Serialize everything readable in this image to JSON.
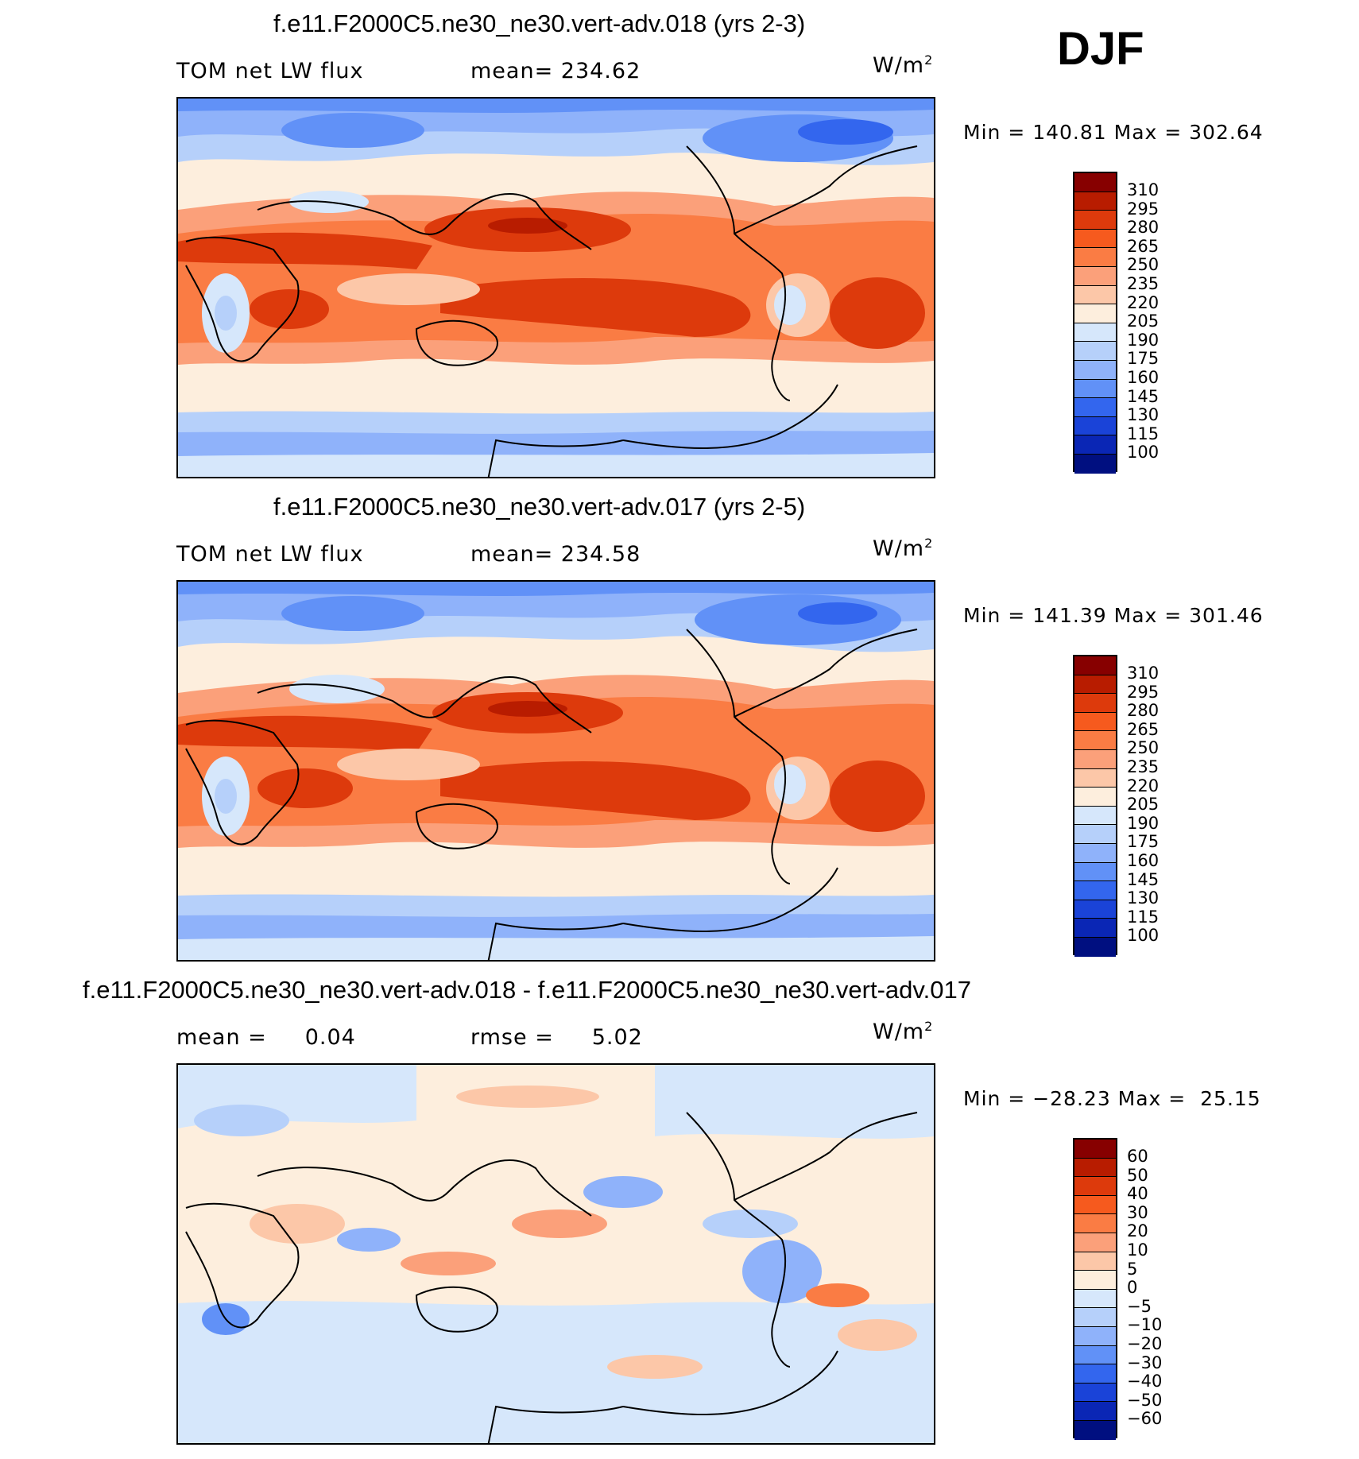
{
  "season": "DJF",
  "units_prefix": "W/m",
  "units_sup": "2",
  "panels": [
    {
      "title": "f.e11.F2000C5.ne30_ne30.vert-adv.018 (yrs 2-3)",
      "left_label": "TOM net LW flux",
      "right_label": "mean= 234.62",
      "minmax": "Min = 140.81 Max = 302.64",
      "scale": "abs"
    },
    {
      "title": "f.e11.F2000C5.ne30_ne30.vert-adv.017 (yrs 2-5)",
      "left_label": "TOM net LW flux",
      "right_label": "mean= 234.58",
      "minmax": "Min = 141.39 Max = 301.46",
      "scale": "abs"
    },
    {
      "title": "f.e11.F2000C5.ne30_ne30.vert-adv.018 - f.e11.F2000C5.ne30_ne30.vert-adv.017",
      "left_label": "mean =     0.04",
      "right_label": "rmse =     5.02",
      "minmax": "Min = −28.23 Max =  25.15",
      "scale": "diff"
    }
  ],
  "abs_levels": [
    "310",
    "295",
    "280",
    "265",
    "250",
    "235",
    "220",
    "205",
    "190",
    "175",
    "160",
    "145",
    "130",
    "115",
    "100"
  ],
  "abs_colors": [
    "#870000",
    "#b81c00",
    "#dd3a0c",
    "#f65a1e",
    "#fa7c44",
    "#fba07a",
    "#fcc7a8",
    "#fdeedd",
    "#d6e7fb",
    "#b6d0fa",
    "#8fb2fa",
    "#6191f7",
    "#3366ee",
    "#1a43d8",
    "#0a26b5",
    "#000f80"
  ],
  "diff_levels": [
    "60",
    "50",
    "40",
    "30",
    "20",
    "10",
    "5",
    "0",
    "−5",
    "−10",
    "−20",
    "−30",
    "−40",
    "−50",
    "−60"
  ],
  "diff_colors": [
    "#870000",
    "#b81c00",
    "#dd3a0c",
    "#f65a1e",
    "#fa7c44",
    "#fba07a",
    "#fcc7a8",
    "#fdeedd",
    "#d6e7fb",
    "#b6d0fa",
    "#8fb2fa",
    "#6191f7",
    "#3366ee",
    "#1a43d8",
    "#0a26b5",
    "#000f80"
  ]
}
